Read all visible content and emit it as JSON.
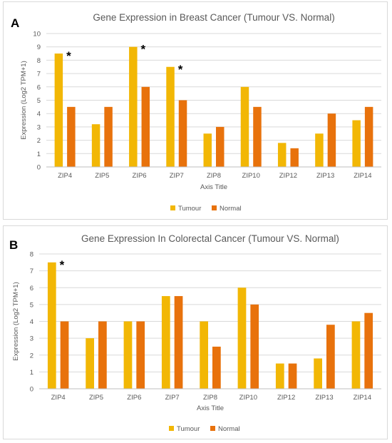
{
  "chart_data": [
    {
      "panel_label": "A",
      "type": "bar",
      "title": "Gene Expression in Breast Cancer (Tumour VS. Normal)",
      "xlabel": "Axis Title",
      "ylabel": "Expression (Log2 TPM+1)",
      "ylim": [
        0,
        10
      ],
      "yticks": [
        0,
        1,
        2,
        3,
        4,
        5,
        6,
        7,
        8,
        9,
        10
      ],
      "grid": true,
      "legend": "bottom",
      "categories": [
        "ZIP4",
        "ZIP5",
        "ZIP6",
        "ZIP7",
        "ZIP8",
        "ZIP10",
        "ZIP12",
        "ZIP13",
        "ZIP14"
      ],
      "series": [
        {
          "name": "Tumour",
          "color": "#F2B705",
          "values": [
            8.5,
            3.2,
            9.0,
            7.5,
            2.5,
            6.0,
            1.8,
            2.5,
            3.5
          ]
        },
        {
          "name": "Normal",
          "color": "#E8720C",
          "values": [
            4.5,
            4.5,
            6.0,
            5.0,
            3.0,
            4.5,
            1.4,
            4.0,
            4.5
          ]
        }
      ],
      "significance_marks": [
        {
          "category": "ZIP4",
          "text": "*"
        },
        {
          "category": "ZIP6",
          "text": "*"
        },
        {
          "category": "ZIP7",
          "text": "*"
        }
      ]
    },
    {
      "panel_label": "B",
      "type": "bar",
      "title": "Gene Expression In Colorectal Cancer (Tumour VS. Normal)",
      "xlabel": "Axis Title",
      "ylabel": "Expression (Log2 TPM+1)",
      "ylim": [
        0,
        8
      ],
      "yticks": [
        0,
        1,
        2,
        3,
        4,
        5,
        6,
        7,
        8
      ],
      "grid": true,
      "legend": "bottom",
      "categories": [
        "ZIP4",
        "ZIP5",
        "ZIP6",
        "ZIP7",
        "ZIP8",
        "ZIP10",
        "ZIP12",
        "ZIP13",
        "ZIP14"
      ],
      "series": [
        {
          "name": "Tumour",
          "color": "#F2B705",
          "values": [
            7.5,
            3.0,
            4.0,
            5.5,
            4.0,
            6.0,
            1.5,
            1.8,
            4.0
          ]
        },
        {
          "name": "Normal",
          "color": "#E8720C",
          "values": [
            4.0,
            4.0,
            4.0,
            5.5,
            2.5,
            5.0,
            1.5,
            3.8,
            4.5
          ]
        }
      ],
      "significance_marks": [
        {
          "category": "ZIP4",
          "text": "*"
        }
      ]
    }
  ]
}
